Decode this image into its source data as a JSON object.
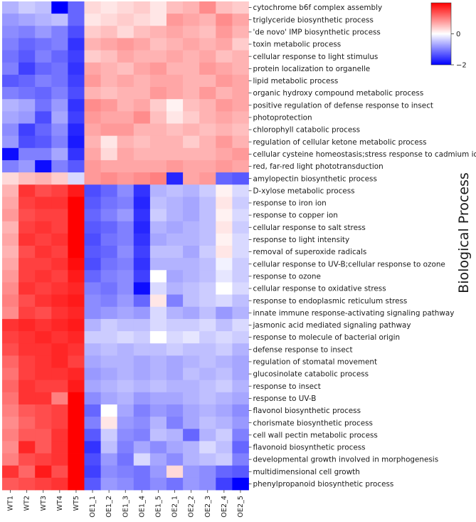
{
  "chart_data": {
    "type": "heatmap",
    "title": "",
    "xlabel": "",
    "ylabel": "Biological Process",
    "columns": [
      "WT1",
      "WT2",
      "WT3",
      "WT4",
      "WT5",
      "OE1_1",
      "OE1_2",
      "OE1_3",
      "OE1_4",
      "OE1_5",
      "OE2_1",
      "OE2_2",
      "OE2_3",
      "OE2_4",
      "OE2_5"
    ],
    "rows": [
      "cytochrome b6f complex assembly",
      "triglyceride biosynthetic process",
      "'de novo' IMP biosynthetic process",
      "toxin metabolic process",
      "cellular response to light stimulus",
      "protein localization to organelle",
      "lipid metabolic process",
      "organic hydroxy compound metabolic process",
      "positive regulation of defense response to insect",
      "photoprotection",
      "chlorophyll catabolic process",
      "regulation of cellular ketone metabolic process",
      "cellular cysteine homeostasis;stress response to cadmium ion",
      "red, far-red light phototransduction",
      "amylopectin biosynthetic process",
      "D-xylose metabolic process",
      "response to iron ion",
      "response to copper ion",
      "cellular response to salt stress",
      "response to light intensity",
      "removal of superoxide radicals",
      "cellular response to UV-B;cellular response to ozone",
      "response to ozone",
      "cellular response to oxidative stress",
      "response to endoplasmic reticulum stress",
      "innate immune response-activating signaling pathway",
      "jasmonic acid mediated signaling pathway",
      "response to molecule of bacterial origin",
      "defense response to insect",
      "regulation of stomatal movement",
      "glucosinolate catabolic process",
      "response to insect",
      "response to UV-B",
      "flavonol biosynthetic process",
      "chorismate biosynthetic process",
      "cell wall pectin metabolic process",
      "flavonoid biosynthetic process",
      "developmental growth involved in morphogenesis",
      "multidimensional cell growth",
      "phenylpropanoid biosynthetic process"
    ],
    "values": [
      [
        -0.6,
        -0.4,
        -0.5,
        -2.0,
        -1.2,
        0.3,
        0.2,
        0.3,
        0.4,
        0.2,
        0.5,
        0.6,
        0.9,
        0.5,
        0.4
      ],
      [
        -0.8,
        -0.7,
        -0.6,
        -0.5,
        -1.2,
        0.2,
        0.3,
        0.4,
        0.3,
        0.2,
        0.8,
        0.7,
        0.6,
        0.9,
        0.7
      ],
      [
        -0.9,
        -1.0,
        -0.8,
        -1.0,
        -1.4,
        0.4,
        0.5,
        0.3,
        0.5,
        0.6,
        0.7,
        0.6,
        0.5,
        0.8,
        0.6
      ],
      [
        -1.0,
        -1.2,
        -1.1,
        -1.0,
        -1.6,
        0.6,
        0.7,
        0.8,
        0.7,
        0.5,
        0.6,
        0.7,
        0.6,
        0.7,
        0.4
      ],
      [
        -1.1,
        -1.3,
        -1.0,
        -1.2,
        -1.5,
        0.4,
        0.5,
        0.7,
        0.6,
        0.6,
        0.7,
        0.6,
        0.7,
        0.5,
        0.6
      ],
      [
        -1.0,
        -1.5,
        -1.2,
        -1.1,
        -1.6,
        0.7,
        0.6,
        0.5,
        0.7,
        0.8,
        0.6,
        0.6,
        0.8,
        0.7,
        0.6
      ],
      [
        -1.3,
        -1.2,
        -1.0,
        -1.1,
        -1.5,
        0.8,
        0.6,
        0.7,
        0.6,
        0.7,
        0.7,
        0.6,
        0.6,
        0.8,
        0.7
      ],
      [
        -1.0,
        -1.1,
        -1.2,
        -1.0,
        -1.4,
        0.6,
        0.5,
        0.6,
        0.6,
        0.8,
        0.7,
        0.6,
        0.8,
        0.6,
        0.7
      ],
      [
        -0.6,
        -0.7,
        -1.1,
        -0.8,
        -1.6,
        0.9,
        0.8,
        0.6,
        0.7,
        0.4,
        0.1,
        0.5,
        0.6,
        0.8,
        0.7
      ],
      [
        -0.7,
        -0.8,
        -1.4,
        -0.7,
        -1.5,
        0.8,
        0.7,
        0.7,
        0.9,
        0.5,
        0.2,
        0.4,
        0.6,
        0.7,
        0.6
      ],
      [
        -0.9,
        -1.5,
        -1.2,
        -0.9,
        -1.7,
        0.7,
        0.8,
        0.8,
        0.6,
        0.6,
        0.5,
        0.6,
        0.5,
        0.6,
        0.5
      ],
      [
        -0.8,
        -1.4,
        -1.3,
        -1.0,
        -1.8,
        0.6,
        0.2,
        0.6,
        0.5,
        0.6,
        0.6,
        0.4,
        0.6,
        0.8,
        0.6
      ],
      [
        -1.9,
        -1.0,
        -1.0,
        -0.7,
        -1.6,
        0.7,
        0.3,
        0.7,
        0.6,
        0.6,
        0.6,
        0.6,
        0.6,
        0.7,
        0.8
      ],
      [
        -1.0,
        -0.8,
        -1.9,
        -1.0,
        -1.3,
        0.8,
        0.7,
        0.7,
        0.7,
        0.7,
        0.8,
        0.7,
        0.7,
        0.8,
        0.7
      ],
      [
        0.3,
        0.5,
        0.6,
        0.4,
        -0.3,
        0.8,
        0.9,
        0.8,
        0.9,
        1.0,
        -1.7,
        0.7,
        0.8,
        -1.2,
        -1.3
      ],
      [
        0.6,
        1.6,
        1.4,
        1.5,
        1.8,
        -1.4,
        -1.2,
        -0.9,
        -1.6,
        -0.6,
        -0.5,
        -0.6,
        -0.4,
        0.1,
        -0.3
      ],
      [
        0.7,
        1.5,
        1.6,
        1.6,
        2.0,
        -1.3,
        -1.1,
        -1.0,
        -1.7,
        -0.5,
        -0.6,
        -0.7,
        -0.5,
        0.2,
        -0.4
      ],
      [
        0.8,
        1.4,
        1.5,
        1.5,
        2.0,
        -1.2,
        -1.0,
        -0.8,
        -1.6,
        -0.4,
        -0.6,
        -0.7,
        -0.5,
        0.1,
        -0.3
      ],
      [
        0.6,
        1.5,
        1.6,
        1.5,
        2.0,
        -1.3,
        -1.2,
        -1.0,
        -1.7,
        -0.6,
        -0.7,
        -0.6,
        -0.5,
        0.2,
        -0.4
      ],
      [
        0.7,
        1.6,
        1.5,
        1.6,
        2.0,
        -1.4,
        -1.1,
        -1.0,
        -1.6,
        -0.7,
        -0.6,
        -0.6,
        -0.5,
        0.1,
        -0.3
      ],
      [
        0.6,
        1.4,
        1.6,
        1.5,
        2.0,
        -1.3,
        -1.2,
        -0.9,
        -1.5,
        -0.5,
        -0.5,
        -0.7,
        -0.4,
        0.2,
        -0.3
      ],
      [
        0.7,
        1.5,
        1.5,
        1.6,
        1.9,
        -1.4,
        -1.1,
        -1.0,
        -1.6,
        -0.6,
        -0.6,
        -0.6,
        -0.5,
        -0.1,
        -0.4
      ],
      [
        0.8,
        1.5,
        1.6,
        1.5,
        1.8,
        -1.2,
        -1.0,
        -0.9,
        -1.5,
        0.0,
        -0.7,
        -0.6,
        -0.5,
        -0.2,
        -0.4
      ],
      [
        0.9,
        1.6,
        1.5,
        1.6,
        1.7,
        -1.0,
        -1.1,
        -0.9,
        -1.9,
        -0.3,
        -0.6,
        -0.5,
        -0.4,
        0.0,
        -0.3
      ],
      [
        1.0,
        1.4,
        1.6,
        1.7,
        1.8,
        -0.9,
        -1.0,
        -0.8,
        -1.2,
        0.2,
        -1.0,
        -0.5,
        -0.4,
        -0.3,
        -0.5
      ],
      [
        0.9,
        1.5,
        1.4,
        1.6,
        1.7,
        -0.9,
        -0.8,
        -0.7,
        -0.8,
        -0.3,
        -0.6,
        -0.7,
        -0.5,
        -0.8,
        -0.6
      ],
      [
        1.6,
        1.7,
        1.6,
        1.7,
        1.8,
        -0.6,
        -0.4,
        -0.5,
        -0.5,
        -0.3,
        -0.4,
        -0.4,
        -0.3,
        -0.5,
        -0.3
      ],
      [
        1.5,
        1.6,
        1.7,
        1.6,
        1.7,
        -0.4,
        -0.4,
        -0.3,
        -0.4,
        0.0,
        -0.3,
        -0.2,
        -0.4,
        -0.3,
        -0.4
      ],
      [
        1.4,
        1.6,
        1.6,
        1.7,
        1.6,
        -0.6,
        -0.5,
        -0.6,
        -0.5,
        -0.5,
        -0.4,
        -0.5,
        -0.5,
        -0.4,
        -0.6
      ],
      [
        1.2,
        1.5,
        1.6,
        1.7,
        1.5,
        -0.7,
        -0.6,
        -0.6,
        -0.7,
        -0.6,
        -0.7,
        -0.6,
        -0.5,
        -0.6,
        -0.7
      ],
      [
        1.1,
        1.5,
        1.6,
        1.6,
        1.7,
        -0.8,
        -0.7,
        -0.6,
        -0.7,
        -0.6,
        -0.7,
        -0.5,
        -0.6,
        -0.5,
        -0.7
      ],
      [
        1.2,
        1.6,
        1.5,
        1.5,
        1.8,
        -0.7,
        -0.6,
        -0.5,
        -0.6,
        -0.5,
        -0.6,
        -0.6,
        -0.5,
        -0.4,
        -0.6
      ],
      [
        1.1,
        1.6,
        1.6,
        1.0,
        2.0,
        -0.9,
        -0.7,
        -0.6,
        -0.8,
        -0.7,
        -0.7,
        -0.6,
        -0.5,
        -0.6,
        -0.7
      ],
      [
        1.0,
        1.3,
        1.4,
        1.5,
        2.0,
        -1.2,
        0.0,
        -0.7,
        -1.0,
        -0.8,
        -0.9,
        -0.7,
        -0.6,
        -0.7,
        -0.9
      ],
      [
        0.9,
        1.2,
        1.4,
        1.5,
        2.0,
        -1.0,
        0.2,
        -0.8,
        -0.9,
        -0.6,
        -1.0,
        -0.7,
        -0.5,
        -0.6,
        -0.8
      ],
      [
        1.0,
        1.3,
        1.3,
        1.6,
        2.0,
        -1.3,
        -0.4,
        -0.9,
        -1.0,
        -0.5,
        -0.6,
        -1.2,
        -0.6,
        -0.4,
        -1.0
      ],
      [
        0.9,
        1.7,
        1.3,
        1.6,
        2.0,
        -1.6,
        -0.5,
        -1.0,
        -0.7,
        -0.9,
        -0.7,
        -0.6,
        -0.3,
        -0.5,
        -1.2
      ],
      [
        1.0,
        1.4,
        1.5,
        1.6,
        2.0,
        -1.4,
        -0.8,
        -1.1,
        -0.3,
        -0.7,
        -0.9,
        -0.6,
        -0.5,
        -0.4,
        -1.0
      ],
      [
        1.6,
        1.2,
        1.8,
        1.4,
        2.0,
        -1.5,
        -0.9,
        -1.0,
        -1.1,
        -0.8,
        0.3,
        -0.8,
        -0.9,
        -1.2,
        -1.3
      ],
      [
        1.3,
        1.4,
        1.5,
        1.6,
        2.0,
        -1.3,
        -0.8,
        -0.9,
        -1.1,
        -0.9,
        -1.1,
        -0.8,
        -0.9,
        -1.5,
        -2.0
      ]
    ],
    "colorbar": {
      "ticks": [
        0,
        -2
      ],
      "min": -2,
      "max": 2,
      "low_color": "#0000ff",
      "mid_color": "#ffffff",
      "high_color": "#ff0000"
    },
    "legend": "top-right"
  }
}
